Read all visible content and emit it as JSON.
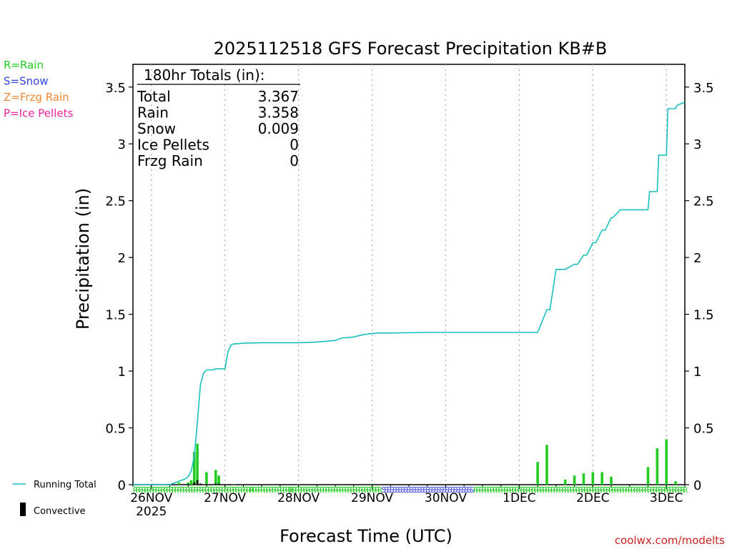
{
  "chart_data": {
    "type": "line",
    "title": "2025112518 GFS Forecast Precipitation KB#B",
    "xlabel": "Forecast Time (UTC)",
    "ylabel": "Precipitation (in)",
    "ylim": [
      0,
      3.7
    ],
    "y_ticks": [
      "0",
      "0.5",
      "1",
      "1.5",
      "2",
      "2.5",
      "3",
      "3.5"
    ],
    "y_tick_values": [
      0,
      0.5,
      1,
      1.5,
      2,
      2.5,
      3,
      3.5
    ],
    "xlim_hours": [
      0,
      180
    ],
    "x_tick_labels": [
      "26NOV",
      "27NOV",
      "28NOV",
      "29NOV",
      "30NOV",
      "1DEC",
      "2DEC",
      "3DEC"
    ],
    "x_tick_hours": [
      6,
      30,
      54,
      78,
      102,
      126,
      150,
      174
    ],
    "x_year_label": "2025",
    "grid": "vertical dotted at day boundaries",
    "legend_left": [
      {
        "label": "R=Rain",
        "color": "#22cc22"
      },
      {
        "label": "S=Snow",
        "color": "#3344dd"
      },
      {
        "label": "Z=Frzg Rain",
        "color": "#ee8833"
      },
      {
        "label": "P=Ice Pellets",
        "color": "#ee2299"
      }
    ],
    "legend_bottom": [
      {
        "label": "Running Total",
        "color": "#18c0c0",
        "kind": "line"
      },
      {
        "label": "Convective",
        "color": "#000000",
        "kind": "bar"
      }
    ],
    "totals_box": {
      "header": "180hr Totals (in):",
      "rows": [
        {
          "label": "Total",
          "value": "3.367"
        },
        {
          "label": "Rain",
          "value": "3.358"
        },
        {
          "label": "Snow",
          "value": "0.009"
        },
        {
          "label": "Ice Pellets",
          "value": "0"
        },
        {
          "label": "Frzg Rain",
          "value": "0"
        }
      ]
    },
    "series": [
      {
        "name": "Running Total",
        "color": "#18c0c0",
        "x_hours": [
          0,
          12,
          14,
          16,
          17,
          18,
          19,
          20,
          21,
          22,
          23,
          24,
          25,
          26,
          27,
          28,
          30,
          31,
          32,
          33,
          34,
          36,
          42,
          54,
          60,
          66,
          68,
          72,
          75,
          78,
          80,
          84,
          96,
          102,
          120,
          132,
          135,
          136,
          138,
          141,
          144,
          145,
          147,
          148,
          150,
          151,
          153,
          154,
          156,
          156.5,
          159,
          160,
          165,
          166,
          168,
          168.5,
          171,
          171.5,
          174,
          174.5,
          177,
          177.5,
          180
        ],
        "values": [
          0.0,
          0.0,
          0.02,
          0.04,
          0.05,
          0.07,
          0.12,
          0.25,
          0.55,
          0.88,
          0.98,
          1.01,
          1.01,
          1.01,
          1.02,
          1.02,
          1.02,
          1.17,
          1.23,
          1.24,
          1.24,
          1.245,
          1.25,
          1.25,
          1.255,
          1.27,
          1.29,
          1.3,
          1.32,
          1.33,
          1.335,
          1.335,
          1.34,
          1.34,
          1.34,
          1.34,
          1.54,
          1.54,
          1.895,
          1.895,
          1.94,
          1.94,
          2.02,
          2.02,
          2.13,
          2.13,
          2.24,
          2.24,
          2.35,
          2.35,
          2.42,
          2.42,
          2.42,
          2.42,
          2.42,
          2.58,
          2.58,
          2.9,
          2.9,
          3.31,
          3.31,
          3.34,
          3.367
        ]
      },
      {
        "name": "Rain",
        "color": "#22cc22",
        "kind": "bar",
        "x_hours": [
          15,
          18,
          19,
          20,
          21,
          24,
          27,
          28,
          33,
          54,
          78,
          132,
          135,
          141,
          144,
          147,
          150,
          153,
          156,
          159,
          168,
          171,
          174,
          177
        ],
        "values": [
          0.02,
          0.02,
          0.04,
          0.29,
          0.36,
          0.11,
          0.13,
          0.08,
          0.004,
          0.003,
          0.008,
          0.2,
          0.35,
          0.045,
          0.08,
          0.1,
          0.11,
          0.11,
          0.07,
          0.0,
          0.155,
          0.32,
          0.4,
          0.03
        ]
      },
      {
        "name": "Convective",
        "color": "#000000",
        "kind": "bar",
        "x_hours": [
          18,
          20,
          21,
          22,
          24,
          27,
          28,
          78
        ],
        "values": [
          0.005,
          0.02,
          0.04,
          0.01,
          0.005,
          0.01,
          0.01,
          0.003
        ]
      }
    ],
    "ptype_strip": [
      {
        "from_h": 0,
        "to_h": 38,
        "symbol": "R",
        "color": "#22cc22"
      },
      {
        "from_h": 38,
        "to_h": 51,
        "symbol": "R",
        "color": "#22cc22"
      },
      {
        "from_h": 51,
        "to_h": 80,
        "symbol": "R",
        "color": "#22cc22"
      },
      {
        "from_h": 81,
        "to_h": 110,
        "symbol": "S",
        "color": "#3344dd"
      },
      {
        "from_h": 111,
        "to_h": 180,
        "symbol": "R",
        "color": "#22cc22"
      }
    ],
    "watermark": "coolwx.com/modelts"
  }
}
